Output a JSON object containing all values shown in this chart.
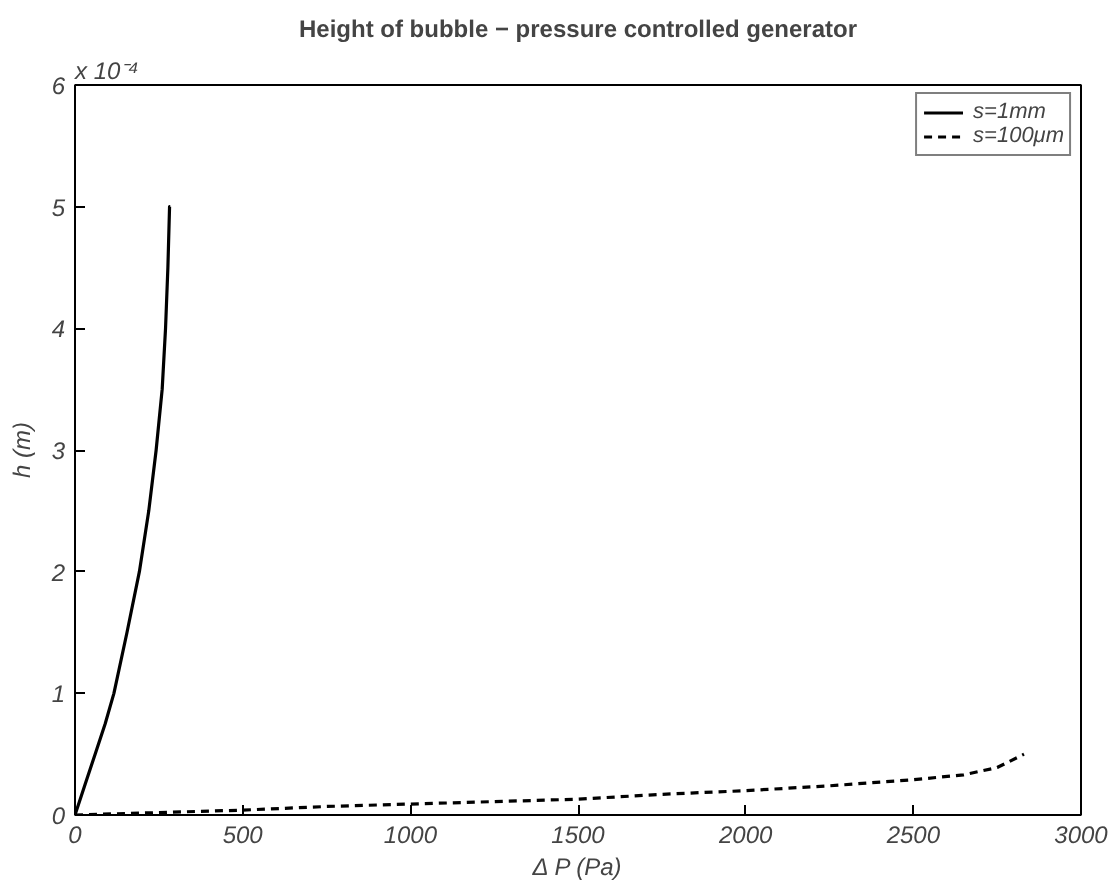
{
  "chart_data": {
    "type": "line",
    "title": "Height of bubble − pressure controlled generator",
    "xlabel": "Δ P (Pa)",
    "ylabel": "h (m)",
    "annotations": [
      "x 10⁻⁴"
    ],
    "xlim": [
      0,
      3000
    ],
    "xticks": [
      0,
      500,
      1000,
      1500,
      2000,
      2500,
      3000
    ],
    "ylim": [
      0,
      6
    ],
    "yticks": [
      0,
      1,
      2,
      3,
      4,
      5,
      6
    ],
    "grid": false,
    "legend": "top right",
    "marker": "none",
    "series": [
      {
        "name": "s=1mm",
        "color": "#000000",
        "line_style": "solid",
        "x": [
          0,
          30,
          60,
          90,
          116,
          155,
          192,
          220,
          242,
          260,
          270,
          277,
          282,
          284
        ],
        "values": [
          0,
          0.25,
          0.5,
          0.75,
          1,
          1.5,
          2,
          2.5,
          3,
          3.5,
          4,
          4.5,
          5,
          5
        ]
      },
      {
        "name": "s=100μm",
        "color": "#000000",
        "line_style": "dashed",
        "x": [
          0,
          250,
          500,
          750,
          1000,
          1250,
          1500,
          1750,
          2000,
          2250,
          2500,
          2650,
          2750,
          2830
        ],
        "values": [
          0,
          0.02,
          0.04,
          0.07,
          0.09,
          0.11,
          0.13,
          0.17,
          0.2,
          0.24,
          0.29,
          0.33,
          0.39,
          0.5
        ]
      }
    ]
  }
}
